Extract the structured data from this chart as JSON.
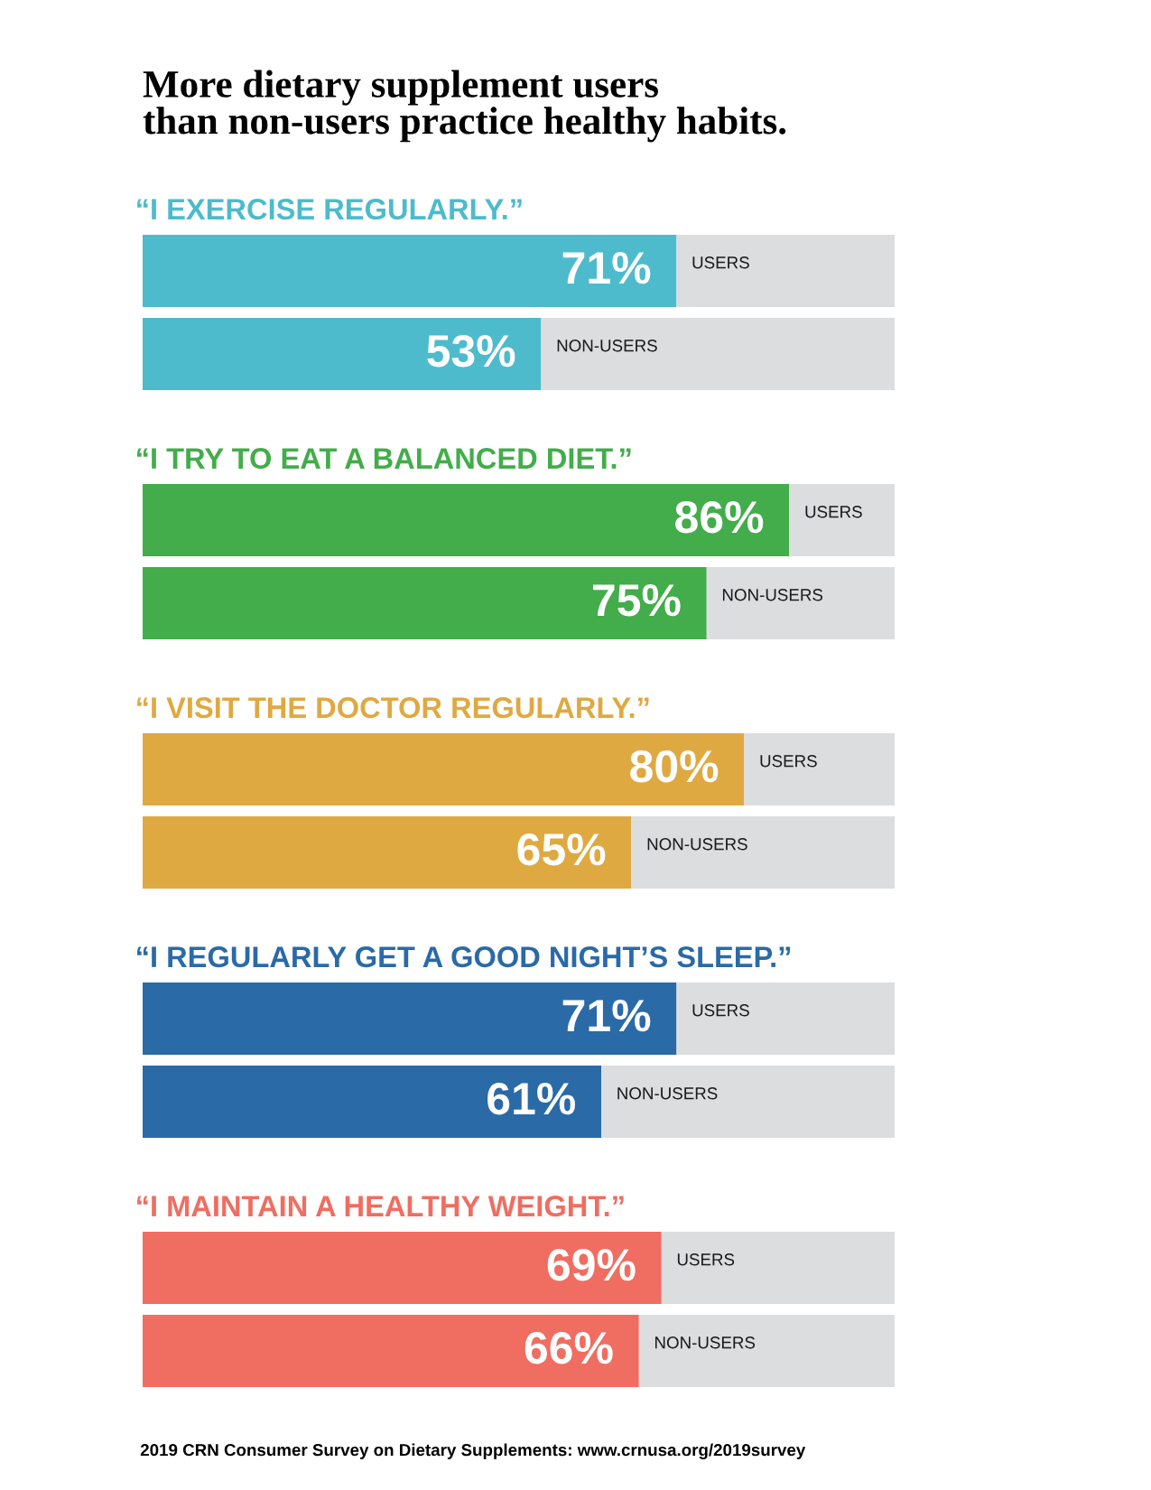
{
  "chart_data": {
    "type": "bar",
    "orientation": "horizontal",
    "stacked": true,
    "tick_labels": "y",
    "xlim": [
      0,
      100
    ],
    "title": "More dietary supplement users\nthan non-users practice healthy habits.",
    "categories": [
      "“I EXERCISE REGULARLY.”",
      "USERS",
      "NON-USERS",
      "“I TRY TO EAT A BALANCED DIET.”",
      "USERS",
      "NON-USERS",
      "“I VISIT THE DOCTOR REGULARLY.”",
      "USERS",
      "NON-USERS",
      "“I REGULARLY GET A GOOD NIGHT’S SLEEP.”",
      "USERS",
      "NON-USERS",
      "“I MAINTAIN A HEALTHY WEIGHT.”",
      "USERS",
      "NON-USERS"
    ],
    "series": [
      {
        "colors": [
          null,
          "#4dbbcb",
          "#4dbbcb",
          null,
          "#42ad4a",
          "#42ad4a",
          null,
          "#dfa942",
          "#dfa942",
          null,
          "#2a6aa7",
          "#2a6aa7",
          null,
          "#f06d61",
          "#f06d61"
        ],
        "values": [
          null,
          71,
          53,
          null,
          86,
          75,
          null,
          80,
          65,
          null,
          71,
          61,
          null,
          69,
          66
        ],
        "value_labels": [
          null,
          "71%",
          "53%",
          null,
          "86%",
          "75%",
          null,
          "80%",
          "65%",
          null,
          "71%",
          "61%",
          null,
          "69%",
          "66%"
        ]
      },
      {
        "color": "#dcdddf",
        "values": [
          null,
          29,
          47,
          null,
          14,
          25,
          null,
          20,
          35,
          null,
          29,
          39,
          null,
          31,
          34
        ]
      }
    ],
    "annotations": [
      "2019 CRN Consumer Survey on Dietary Supplements: www.crnusa.org/2019survey"
    ]
  }
}
